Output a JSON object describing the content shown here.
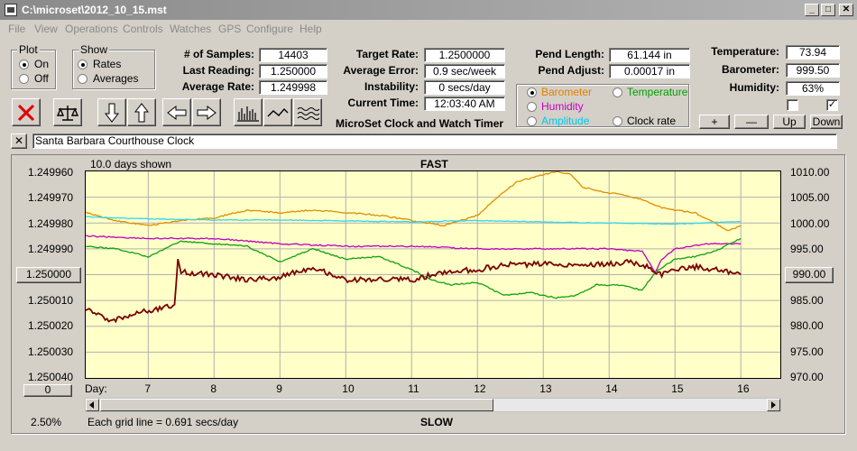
{
  "window": {
    "title": "C:\\microset\\2012_10_15.mst",
    "min_label": "_",
    "max_label": "□",
    "close_label": "✕"
  },
  "menu": [
    "File",
    "View",
    "Operations",
    "Controls",
    "Watches",
    "GPS",
    "Configure",
    "Help"
  ],
  "plot_group": {
    "label": "Plot",
    "on": "On",
    "off": "Off",
    "selected": "On"
  },
  "show_group": {
    "label": "Show",
    "rates": "Rates",
    "averages": "Averages",
    "selected": "Rates"
  },
  "stats": {
    "samples_label": "# of Samples:",
    "samples": "14403",
    "last_label": "Last Reading:",
    "last": "1.250000",
    "avg_label": "Average Rate:",
    "avg": "1.249998"
  },
  "rates": {
    "target_label": "Target Rate:",
    "target": "1.2500000",
    "error_label": "Average Error:",
    "error": "0.9 sec/week",
    "instab_label": "Instability:",
    "instab": "0 secs/day",
    "time_label": "Current Time:",
    "time": "12:03:40 AM"
  },
  "program_title": "MicroSet Clock and Watch Timer",
  "pend": {
    "length_label": "Pend Length:",
    "length": "61.144 in",
    "adjust_label": "Pend Adjust:",
    "adjust": "0.00017 in"
  },
  "sensor_options": [
    {
      "label": "Barometer",
      "color": "#e08000",
      "selected": true
    },
    {
      "label": "Temperature",
      "color": "#00a000",
      "selected": false
    },
    {
      "label": "Humidity",
      "color": "#c000c0",
      "selected": false
    },
    {
      "label": "Amplitude",
      "color": "#00c8e8",
      "selected": false
    },
    {
      "label": "Clock rate",
      "color": "#000000",
      "selected": false
    }
  ],
  "env": {
    "temp_label": "Temperature:",
    "temp": "73.94",
    "baro_label": "Barometer:",
    "baro": "999.50",
    "hum_label": "Humidity:",
    "hum": "63%"
  },
  "env_checks": [
    false,
    true
  ],
  "env_buttons": [
    "+",
    "—",
    "Up",
    "Down"
  ],
  "clock_name": "Santa Barbara Courthouse Clock",
  "clear_label": "✕",
  "chart_data": {
    "type": "line",
    "top_label": "FAST",
    "bottom_label": "SLOW",
    "days_shown": "10.0 days shown",
    "grid_note": "Each grid line = 0.691 secs/day",
    "zoom": "2.50%",
    "x_axis_label": "Day:",
    "x_ticks": [
      "7",
      "8",
      "9",
      "10",
      "11",
      "12",
      "13",
      "14",
      "15",
      "16"
    ],
    "x_range": [
      6.05,
      16.6
    ],
    "y_left_ticks": [
      "1.249960",
      "1.249970",
      "1.249980",
      "1.249990",
      "1.250000",
      "1.250010",
      "1.250020",
      "1.250030",
      "1.250040"
    ],
    "y_left_range": [
      1.24996,
      1.25004
    ],
    "y_left_button": "1.250000",
    "y_left_offset_button": "0",
    "y_right_ticks": [
      "1010.00",
      "1005.00",
      "1000.00",
      "995.00",
      "990.00",
      "985.00",
      "980.00",
      "975.00",
      "970.00"
    ],
    "y_right_range": [
      970,
      1010
    ],
    "y_right_button": "990.00",
    "grid": true,
    "series": [
      {
        "name": "Barometer",
        "color": "#e08c00",
        "axis": "right",
        "x": [
          6.05,
          6.5,
          7.0,
          7.5,
          8.0,
          8.5,
          9.0,
          9.5,
          10.0,
          10.5,
          11.0,
          11.5,
          12.0,
          12.3,
          12.6,
          12.9,
          13.2,
          13.4,
          13.6,
          13.9,
          14.2,
          14.5,
          14.8,
          15.0,
          15.3,
          15.6,
          15.8,
          16.0
        ],
        "y": [
          1002.0,
          1000.5,
          999.5,
          1000.5,
          1001.0,
          1002.5,
          1002.0,
          1002.5,
          1002.0,
          1001.5,
          1000.5,
          999.5,
          1001.5,
          1005.0,
          1008.0,
          1009.0,
          1010.0,
          1009.5,
          1007.0,
          1006.0,
          1005.5,
          1004.5,
          1003.0,
          1002.5,
          1002.0,
          1000.0,
          998.5,
          999.5
        ]
      },
      {
        "name": "Amplitude",
        "color": "#30d8f0",
        "axis": "right",
        "x": [
          6.05,
          7.0,
          8.0,
          9.0,
          10.0,
          11.0,
          12.0,
          13.0,
          14.0,
          15.0,
          16.0
        ],
        "y": [
          1001.2,
          1000.8,
          1000.6,
          1000.6,
          1000.4,
          1000.2,
          1000.5,
          1000.2,
          1000.0,
          999.8,
          1000.3
        ]
      },
      {
        "name": "Humidity",
        "color": "#c000c0",
        "axis": "right",
        "x": [
          6.05,
          7.0,
          8.0,
          9.0,
          10.0,
          11.0,
          12.0,
          13.0,
          14.0,
          14.5,
          14.7,
          14.8,
          15.0,
          15.5,
          16.0
        ],
        "y": [
          997.5,
          997.0,
          997.0,
          996.0,
          995.5,
          995.5,
          995.0,
          995.0,
          995.0,
          994.5,
          990.5,
          993.0,
          995.0,
          996.0,
          996.0
        ]
      },
      {
        "name": "Temperature",
        "color": "#10a010",
        "axis": "right",
        "x": [
          6.05,
          6.5,
          7.0,
          7.5,
          8.0,
          8.5,
          9.0,
          9.5,
          10.0,
          10.5,
          11.0,
          11.3,
          11.6,
          12.0,
          12.4,
          12.8,
          13.2,
          13.5,
          13.8,
          14.2,
          14.5,
          14.7,
          15.0,
          15.3,
          15.6,
          16.0
        ],
        "y": [
          995.5,
          995.0,
          993.5,
          996.5,
          996.0,
          995.5,
          992.5,
          995.0,
          993.0,
          993.5,
          991.0,
          989.0,
          988.0,
          988.5,
          986.0,
          986.5,
          985.5,
          986.0,
          988.0,
          988.0,
          987.0,
          990.5,
          993.0,
          993.5,
          994.5,
          997.0
        ]
      },
      {
        "name": "Clock rate",
        "color": "#7a0000",
        "axis": "left",
        "x": [
          6.05,
          6.4,
          6.8,
          7.2,
          7.4,
          7.45,
          7.5,
          8.0,
          8.5,
          9.0,
          9.5,
          10.0,
          10.5,
          11.0,
          11.5,
          12.0,
          12.5,
          13.0,
          13.5,
          14.0,
          14.3,
          14.6,
          14.8,
          15.0,
          15.3,
          15.6,
          16.0
        ],
        "y": [
          1.250013,
          1.250018,
          1.250015,
          1.250013,
          1.250012,
          1.249994,
          1.249999,
          1.25,
          1.250002,
          1.250001,
          1.249997,
          1.250002,
          1.250002,
          1.250002,
          1.249999,
          1.249998,
          1.249996,
          1.249996,
          1.249996,
          1.249996,
          1.249995,
          1.249997,
          1.25,
          1.249998,
          1.249997,
          1.249998,
          1.25
        ]
      }
    ]
  }
}
